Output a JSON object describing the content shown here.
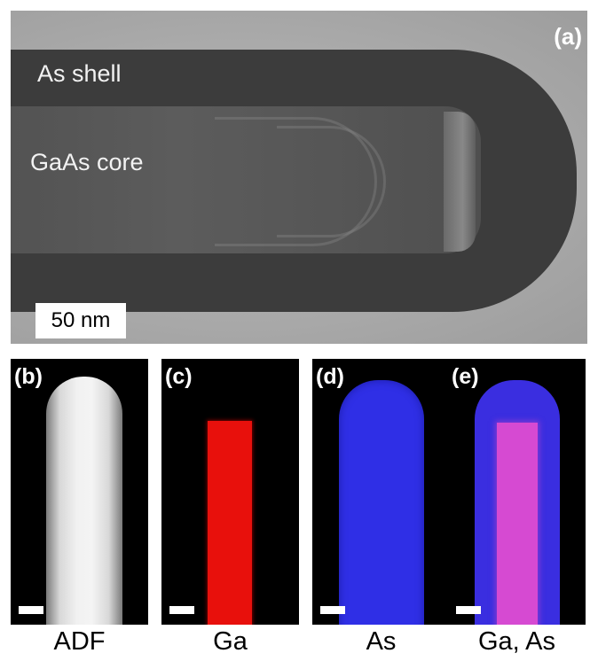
{
  "panel_a": {
    "letter": "(a)",
    "shell_label": "As shell",
    "core_label": "GaAs core",
    "scale_bar": "50 nm"
  },
  "maps": [
    {
      "letter": "(b)",
      "caption": "ADF"
    },
    {
      "letter": "(c)",
      "caption": "Ga"
    },
    {
      "letter": "(d)",
      "caption": "As"
    },
    {
      "letter": "(e)",
      "caption": "Ga, As"
    }
  ],
  "colors": {
    "ga_map": "#e8100c",
    "as_map": "#2f2fe6",
    "overlay_core": "#d64ad2"
  }
}
